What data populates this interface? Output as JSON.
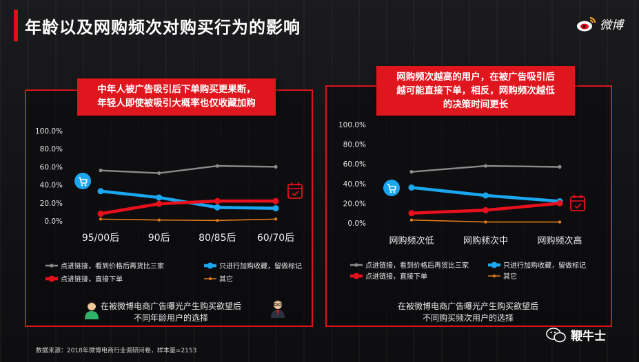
{
  "header": {
    "title": "年龄以及网购频次对购买行为的影响",
    "logo_text": "微博"
  },
  "callouts": {
    "left": [
      "中年人被广告吸引后下单购买更果断，",
      "年轻人即使被吸引大概率也仅收藏加购"
    ],
    "right": [
      "网购频次越高的用户，在被广告吸引后",
      "越可能直接下单，相反，网购频次越低",
      "的决策时间更长"
    ]
  },
  "captions": {
    "left": [
      "在被微博电商广告曝光产生购买欲望后",
      "不同年龄用户的选择"
    ],
    "right": [
      "在被微博电商广告曝光产生购买欲望后",
      "不同购买频次用户的选择"
    ]
  },
  "source": "数据来源：2018年微博电商行业调研问卷，样本量=2153",
  "watermark": "鞭牛士",
  "colors": {
    "accent": "#e0101a",
    "gray": "#8c8c8c",
    "blue": "#1aa7f0",
    "red": "#e8101c",
    "orange": "#e07a1a"
  },
  "chart_data": [
    {
      "type": "line",
      "categories": [
        "95/00后",
        "90后",
        "80/85后",
        "60/70后"
      ],
      "ylim": [
        0,
        100
      ],
      "yticks": [
        "100.0%",
        "80.0%",
        "60.0%",
        "40.0%",
        "20.0%",
        "0.0%"
      ],
      "series": [
        {
          "name": "点进链接，看到价格后再货比三家",
          "color": "#8c8c8c",
          "values": [
            56,
            53,
            61,
            60
          ]
        },
        {
          "name": "只进行加购收藏，留做标记",
          "color": "#1aa7f0",
          "values": [
            33,
            26,
            15,
            14
          ]
        },
        {
          "name": "点进链接，直接下单",
          "color": "#e8101c",
          "values": [
            8,
            19,
            22,
            22
          ]
        },
        {
          "name": "其它",
          "color": "#e07a1a",
          "values": [
            2,
            1,
            0.5,
            2
          ]
        }
      ]
    },
    {
      "type": "line",
      "categories": [
        "网购频次低",
        "网购频次中",
        "网购频次高"
      ],
      "ylim": [
        0,
        100
      ],
      "yticks": [
        "100.0%",
        "80.0%",
        "60.0%",
        "40.0%",
        "20.0%",
        "0.0%"
      ],
      "series": [
        {
          "name": "点进链接，看到价格后再货比三家",
          "color": "#8c8c8c",
          "values": [
            52,
            58,
            57
          ]
        },
        {
          "name": "只进行加购收藏，留做标记",
          "color": "#1aa7f0",
          "values": [
            36,
            28,
            22
          ]
        },
        {
          "name": "点进链接，直接下单",
          "color": "#e8101c",
          "values": [
            10,
            13,
            20
          ]
        },
        {
          "name": "其它",
          "color": "#e07a1a",
          "values": [
            3,
            1,
            1
          ]
        }
      ]
    }
  ]
}
